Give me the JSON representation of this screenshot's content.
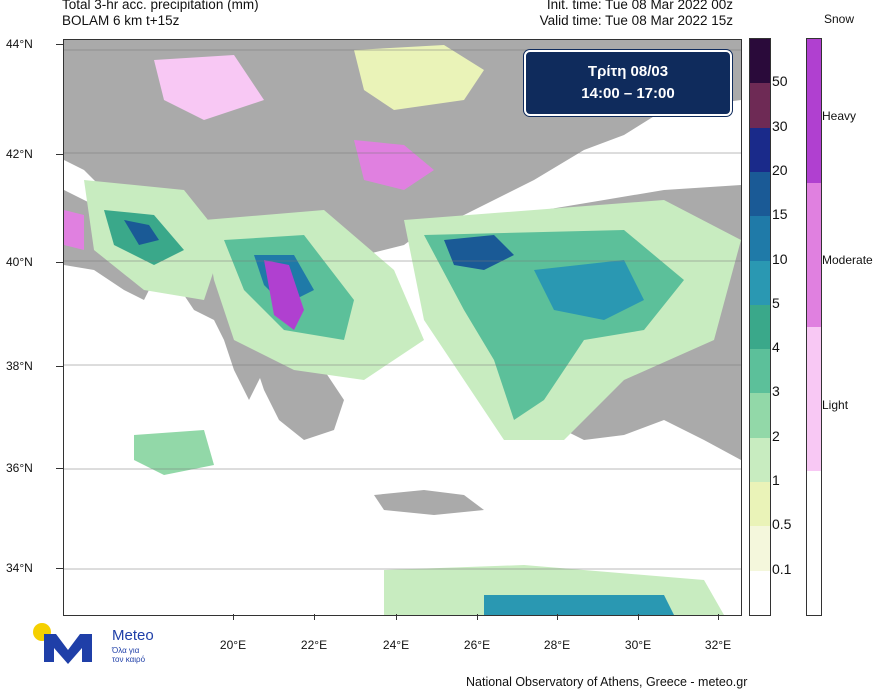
{
  "header": {
    "title_line1": "Total 3-hr acc. precipitation (mm)",
    "title_line2": "BOLAM 6 km t+15z",
    "init_time": "Init. time: Tue 08 Mar 2022 00z",
    "valid_time": "Valid time: Tue 08 Mar 2022 15z"
  },
  "badge": {
    "day": "Τρίτη 08/03",
    "hours": "14:00 – 17:00"
  },
  "axes": {
    "lat_labels": [
      "44°N",
      "42°N",
      "40°N",
      "38°N",
      "36°N",
      "34°N"
    ],
    "lon_labels": [
      "20°E",
      "22°E",
      "24°E",
      "26°E",
      "28°E",
      "30°E",
      "32°E"
    ]
  },
  "precip_scale": {
    "labels": [
      "50",
      "30",
      "20",
      "15",
      "10",
      "5",
      "4",
      "3",
      "2",
      "1",
      "0.5",
      "0.1"
    ],
    "colors": [
      "#2a0a3a",
      "#6e2a55",
      "#1a2a8a",
      "#1a5a96",
      "#1f7aa8",
      "#2a98b2",
      "#3aa88a",
      "#5cc09a",
      "#92d8a8",
      "#c8ecc0",
      "#eaf3b8",
      "#f4f7dc",
      "#ffffff"
    ]
  },
  "snow_scale": {
    "title": "Snow",
    "labels": [
      "Heavy",
      "Moderate",
      "Light"
    ],
    "colors": [
      "#b040d0",
      "#e080e0",
      "#f8c8f4",
      "#ffffff"
    ]
  },
  "footer": "National Observatory of Athens, Greece - meteo.gr",
  "logo": {
    "name": "Meteo",
    "tagline": "Όλα για τον καιρό",
    "brand_color": "#1f3fa8",
    "sun_color": "#f5d000"
  }
}
